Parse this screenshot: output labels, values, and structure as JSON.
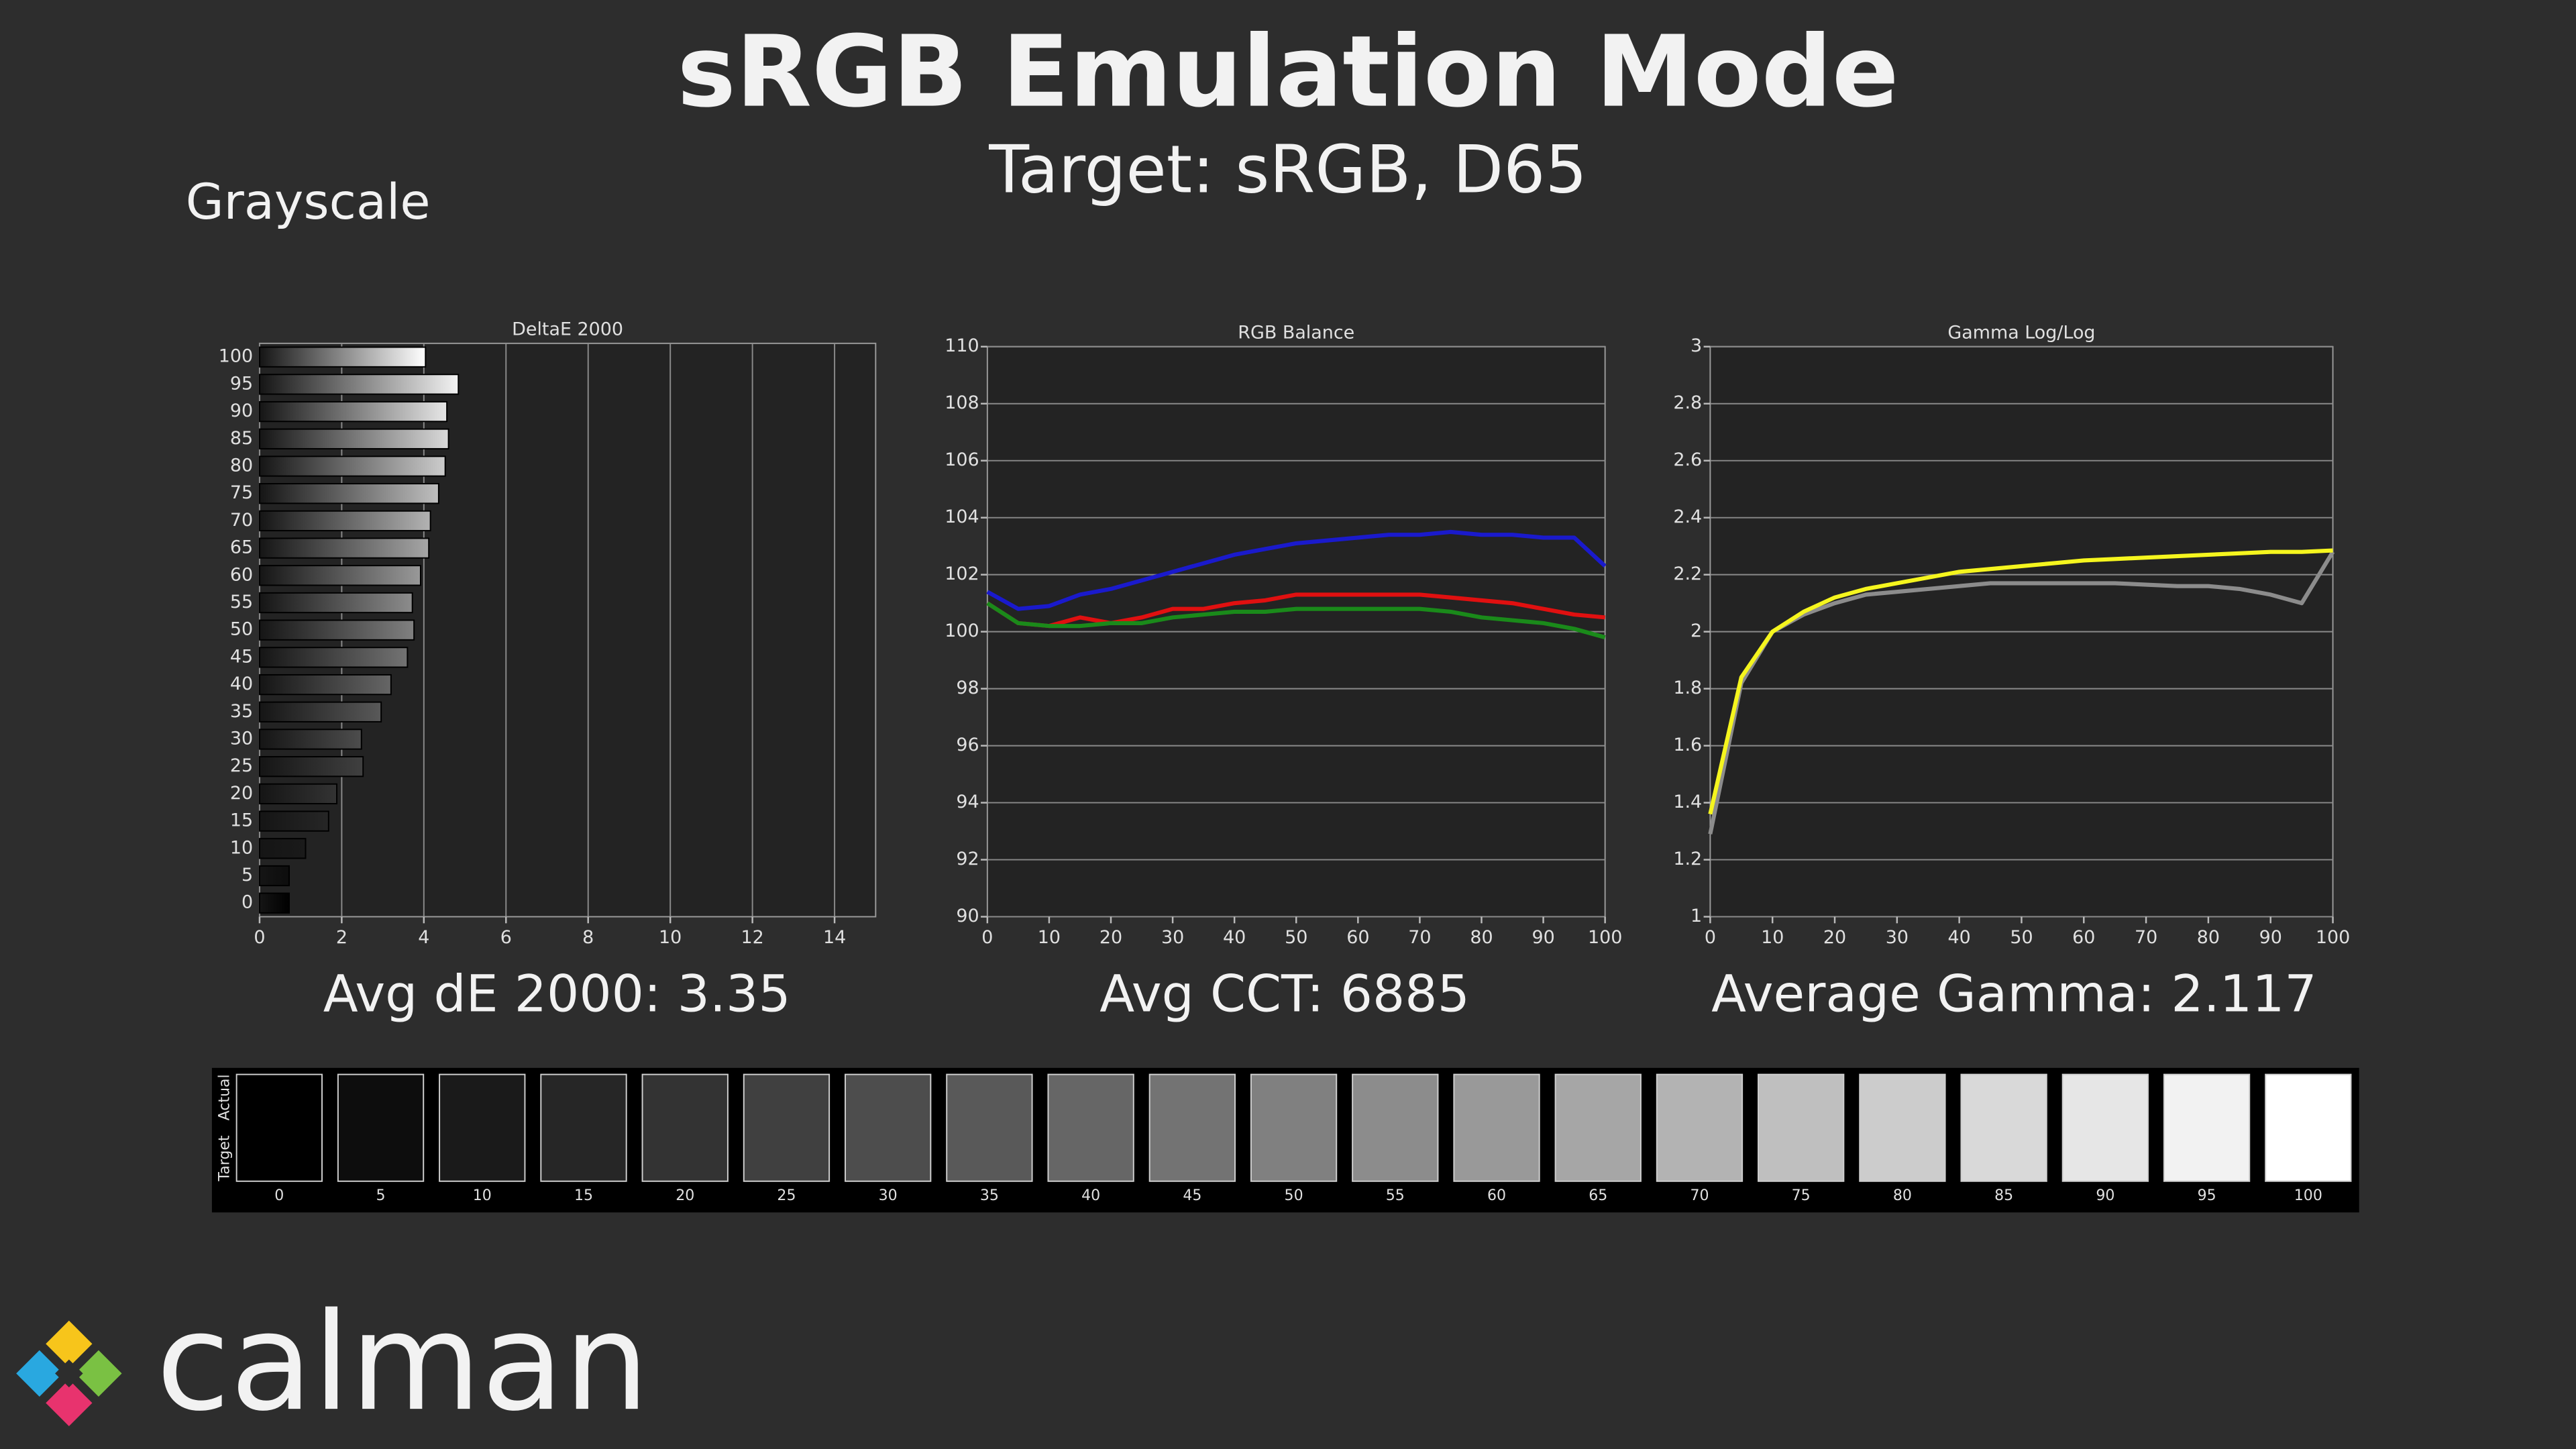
{
  "header": {
    "title": "sRGB Emulation Mode",
    "subtitle": "Target: sRGB, D65",
    "section": "Grayscale",
    "logo": "calman"
  },
  "chart_data": [
    {
      "type": "barh",
      "title": "DeltaE 2000",
      "annotation": "Avg dE 2000: 3.35",
      "categories": [
        100,
        95,
        90,
        85,
        80,
        75,
        70,
        65,
        60,
        55,
        50,
        45,
        40,
        35,
        30,
        25,
        20,
        15,
        10,
        5,
        0
      ],
      "values": [
        4.04,
        4.84,
        4.56,
        4.6,
        4.52,
        4.36,
        4.16,
        4.12,
        3.92,
        3.72,
        3.76,
        3.6,
        3.2,
        2.96,
        2.48,
        2.52,
        1.88,
        1.68,
        1.12,
        0.72,
        0.72
      ],
      "xlim": [
        0,
        15
      ],
      "xticks": [
        0,
        2,
        4,
        6,
        8,
        10,
        12,
        14
      ],
      "grid": true
    },
    {
      "type": "line",
      "title": "RGB Balance",
      "annotation": "Avg CCT: 6885",
      "x": [
        0,
        5,
        10,
        15,
        20,
        25,
        30,
        35,
        40,
        45,
        50,
        55,
        60,
        65,
        70,
        75,
        80,
        85,
        90,
        95,
        100
      ],
      "series": [
        {
          "color": "#e01010",
          "values": [
            101.0,
            100.3,
            100.2,
            100.5,
            100.3,
            100.5,
            100.8,
            100.8,
            101.0,
            101.1,
            101.3,
            101.3,
            101.3,
            101.3,
            101.3,
            101.2,
            101.1,
            101.0,
            100.8,
            100.6,
            100.5
          ]
        },
        {
          "color": "#1a8a1a",
          "values": [
            101.0,
            100.3,
            100.2,
            100.2,
            100.3,
            100.3,
            100.5,
            100.6,
            100.7,
            100.7,
            100.8,
            100.8,
            100.8,
            100.8,
            100.8,
            100.7,
            100.5,
            100.4,
            100.3,
            100.1,
            99.8
          ]
        },
        {
          "color": "#1a1acc",
          "values": [
            101.4,
            100.8,
            100.9,
            101.3,
            101.5,
            101.8,
            102.1,
            102.4,
            102.7,
            102.9,
            103.1,
            103.2,
            103.3,
            103.4,
            103.4,
            103.5,
            103.4,
            103.4,
            103.3,
            103.3,
            102.3
          ]
        }
      ],
      "xlim": [
        0,
        100
      ],
      "xticks": [
        0,
        10,
        20,
        30,
        40,
        50,
        60,
        70,
        80,
        90,
        100
      ],
      "ylim": [
        90,
        110
      ],
      "yticks": [
        90,
        92,
        94,
        96,
        98,
        100,
        102,
        104,
        106,
        108,
        110
      ],
      "grid": true
    },
    {
      "type": "line",
      "title": "Gamma Log/Log",
      "annotation": "Average Gamma: 2.117",
      "x": [
        0,
        5,
        10,
        15,
        20,
        25,
        30,
        35,
        40,
        45,
        50,
        55,
        60,
        65,
        70,
        75,
        80,
        85,
        90,
        95,
        100
      ],
      "series": [
        {
          "color": "#8c8c8c",
          "values": [
            1.29,
            1.82,
            2.0,
            2.06,
            2.1,
            2.13,
            2.14,
            2.15,
            2.16,
            2.17,
            2.17,
            2.17,
            2.17,
            2.17,
            2.165,
            2.16,
            2.16,
            2.15,
            2.13,
            2.1,
            2.28
          ]
        },
        {
          "color": "#f5f51e",
          "values": [
            1.36,
            1.84,
            2.0,
            2.07,
            2.12,
            2.15,
            2.17,
            2.19,
            2.21,
            2.22,
            2.23,
            2.24,
            2.25,
            2.255,
            2.26,
            2.265,
            2.27,
            2.275,
            2.28,
            2.28,
            2.285
          ]
        }
      ],
      "xlim": [
        0,
        100
      ],
      "xticks": [
        0,
        10,
        20,
        30,
        40,
        50,
        60,
        70,
        80,
        90,
        100
      ],
      "ylim": [
        1,
        3
      ],
      "yticks": [
        1,
        1.2,
        1.4,
        1.6,
        1.8,
        2,
        2.2,
        2.4,
        2.6,
        2.8,
        3
      ],
      "grid": true
    }
  ],
  "swatches": {
    "row_labels": [
      "Actual",
      "Target"
    ],
    "levels": [
      0,
      5,
      10,
      15,
      20,
      25,
      30,
      35,
      40,
      45,
      50,
      55,
      60,
      65,
      70,
      75,
      80,
      85,
      90,
      95,
      100
    ]
  }
}
